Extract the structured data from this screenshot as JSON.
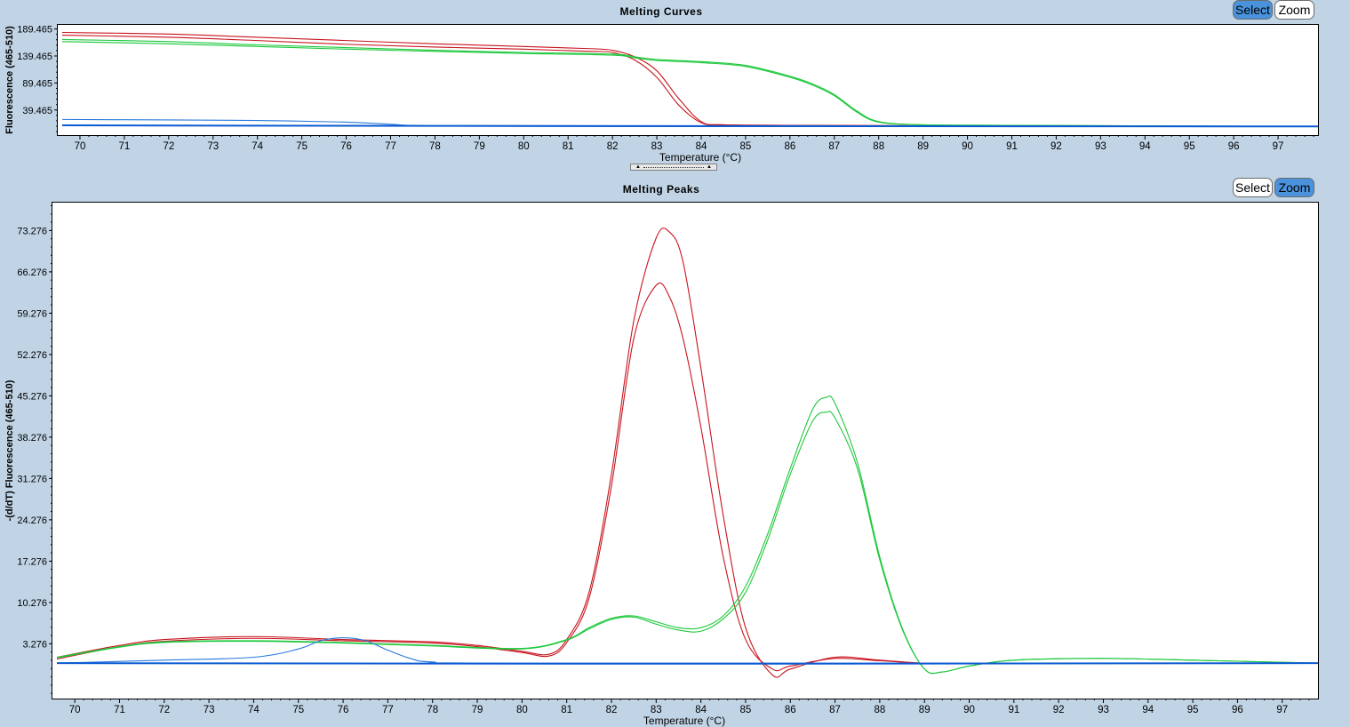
{
  "curves_panel": {
    "title": "Melting Curves",
    "select_label": "Select",
    "zoom_label": "Zoom",
    "active_button": "select"
  },
  "peaks_panel": {
    "title": "Melting Peaks",
    "select_label": "Select",
    "zoom_label": "Zoom",
    "active_button": "zoom"
  },
  "colors": {
    "red": "#c8141e",
    "green": "#1ec83c",
    "blue": "#2878dc",
    "dark_blue": "#0a5ad2"
  },
  "chart_data": [
    {
      "type": "line",
      "title": "Melting Curves",
      "xlabel": "Temperature (°C)",
      "ylabel": "Fluorescence (465-510)",
      "xlim": [
        69.5,
        97.9
      ],
      "ylim": [
        -7,
        197
      ],
      "xticks": [
        "70",
        "71",
        "72",
        "73",
        "74",
        "75",
        "76",
        "77",
        "78",
        "79",
        "80",
        "81",
        "82",
        "83",
        "84",
        "85",
        "86",
        "87",
        "88",
        "89",
        "90",
        "91",
        "92",
        "93",
        "94",
        "95",
        "96",
        "97"
      ],
      "yticks": [
        "189.465",
        "139.465",
        "89.465",
        "39.465"
      ],
      "ytick_values": [
        189.465,
        139.465,
        89.465,
        39.465
      ],
      "series": [
        {
          "color": "red",
          "x": [
            69.6,
            72,
            74,
            76,
            78,
            80,
            81.5,
            82,
            82.5,
            83,
            83.5,
            84,
            84.5,
            86,
            90,
            97.9
          ],
          "y": [
            183,
            180,
            174,
            168,
            162,
            157,
            153,
            150,
            138,
            112,
            60,
            18,
            12,
            11,
            10,
            9
          ]
        },
        {
          "color": "red",
          "x": [
            69.6,
            72,
            74,
            76,
            78,
            80,
            81.5,
            82,
            82.5,
            83,
            83.5,
            84,
            84.5,
            86,
            90,
            97.9
          ],
          "y": [
            178,
            174,
            168,
            161,
            156,
            152,
            148,
            146,
            132,
            100,
            48,
            16,
            12,
            11,
            10,
            9
          ]
        },
        {
          "color": "green",
          "x": [
            69.6,
            72,
            74,
            76,
            78,
            80,
            82,
            82.5,
            83,
            84,
            85,
            86,
            86.5,
            87,
            87.5,
            88,
            89,
            91,
            94,
            97.9
          ],
          "y": [
            170,
            166,
            160,
            155,
            150,
            146,
            143,
            138,
            133,
            129,
            122,
            102,
            88,
            68,
            38,
            18,
            12,
            11,
            10,
            9
          ]
        },
        {
          "color": "green",
          "x": [
            69.6,
            72,
            74,
            76,
            78,
            80,
            82,
            82.5,
            83,
            84,
            85,
            86,
            86.5,
            87,
            87.5,
            88,
            89,
            91,
            94,
            97.9
          ],
          "y": [
            166,
            162,
            157,
            152,
            148,
            144,
            141,
            136,
            131,
            127,
            120,
            100,
            86,
            66,
            36,
            17,
            12,
            11,
            10,
            9
          ]
        },
        {
          "color": "blue",
          "x": [
            69.6,
            72,
            74,
            76,
            77,
            78,
            82,
            97.9
          ],
          "y": [
            22,
            21,
            20,
            17,
            13,
            10,
            9,
            9
          ]
        },
        {
          "color": "dark_blue",
          "x": [
            69.6,
            78,
            97.9
          ],
          "y": [
            11,
            10,
            9
          ]
        }
      ]
    },
    {
      "type": "line",
      "title": "Melting Peaks",
      "xlabel": "Temperature (°C)",
      "ylabel": "-(d/dT) Fluorescence (465-510)",
      "xlim": [
        69.5,
        97.8
      ],
      "ylim": [
        -6,
        78
      ],
      "xticks": [
        "70",
        "71",
        "72",
        "73",
        "74",
        "75",
        "76",
        "77",
        "78",
        "79",
        "80",
        "81",
        "82",
        "83",
        "84",
        "85",
        "86",
        "87",
        "88",
        "89",
        "90",
        "91",
        "92",
        "93",
        "94",
        "95",
        "96",
        "97"
      ],
      "yticks": [
        "73.276",
        "66.276",
        "59.276",
        "52.276",
        "45.276",
        "38.276",
        "31.276",
        "24.276",
        "17.276",
        "10.276",
        "3.276"
      ],
      "ytick_values": [
        73.276,
        66.276,
        59.276,
        52.276,
        45.276,
        38.276,
        31.276,
        24.276,
        17.276,
        10.276,
        3.276
      ],
      "series": [
        {
          "color": "red",
          "x": [
            69.6,
            71,
            72,
            74,
            76,
            78,
            79,
            80,
            80.6,
            81,
            81.5,
            82,
            82.5,
            83,
            83.3,
            83.6,
            84,
            84.5,
            85,
            85.6,
            86,
            87,
            88,
            89,
            90,
            97.8
          ],
          "y": [
            1,
            3,
            4,
            4.5,
            4,
            3.6,
            3,
            2,
            1.5,
            4,
            12,
            32,
            58,
            72,
            73,
            68,
            50,
            25,
            6,
            -2,
            -1,
            1,
            0.5,
            0,
            0,
            0
          ]
        },
        {
          "color": "red",
          "x": [
            69.6,
            71,
            72,
            74,
            76,
            78,
            79,
            80,
            80.6,
            81,
            81.5,
            82,
            82.5,
            83,
            83.3,
            83.6,
            84,
            84.5,
            85,
            85.6,
            86,
            87,
            88,
            89,
            90,
            97.8
          ],
          "y": [
            0.7,
            2.8,
            3.7,
            4.2,
            3.8,
            3.4,
            2.8,
            1.8,
            1.2,
            3.5,
            11,
            30,
            55,
            64,
            62,
            55,
            40,
            18,
            4,
            -1,
            -0.5,
            0.8,
            0.4,
            0,
            0,
            0
          ]
        },
        {
          "color": "green",
          "x": [
            69.6,
            71,
            72,
            74,
            76,
            78,
            80,
            81,
            81.5,
            82,
            82.5,
            83,
            83.5,
            84,
            84.5,
            85,
            85.5,
            86,
            86.5,
            86.8,
            87,
            87.5,
            88,
            88.5,
            89,
            89.4,
            90,
            91,
            93,
            95,
            97.8
          ],
          "y": [
            1,
            2.8,
            3.6,
            3.8,
            3.5,
            3,
            2.5,
            4,
            6,
            7.6,
            8,
            7,
            6,
            6,
            8,
            13,
            22,
            33,
            43,
            45,
            44,
            34,
            18,
            6,
            -1,
            -1.5,
            -0.5,
            0.5,
            0.8,
            0.5,
            0
          ]
        },
        {
          "color": "green",
          "x": [
            69.6,
            71,
            72,
            74,
            76,
            78,
            80,
            81,
            81.5,
            82,
            82.5,
            83,
            83.5,
            84,
            84.5,
            85,
            85.5,
            86,
            86.5,
            86.8,
            87,
            87.5,
            88,
            88.5,
            89,
            89.4,
            90,
            91,
            93,
            95,
            97.8
          ],
          "y": [
            0.9,
            2.7,
            3.5,
            3.7,
            3.4,
            2.9,
            2.4,
            3.9,
            5.8,
            7.4,
            7.8,
            6.6,
            5.6,
            5.4,
            7.5,
            12,
            21,
            32,
            41,
            42.5,
            41.5,
            33,
            17.5,
            5.8,
            -1,
            -1.5,
            -0.5,
            0.5,
            0.8,
            0.5,
            0
          ]
        },
        {
          "color": "blue",
          "x": [
            69.6,
            72,
            74,
            75,
            75.5,
            76,
            76.5,
            77,
            77.5,
            78,
            80,
            97.8
          ],
          "y": [
            0,
            0.5,
            1,
            2.4,
            3.8,
            4.3,
            3.8,
            2.2,
            0.8,
            0.2,
            0,
            0
          ]
        },
        {
          "color": "dark_blue",
          "x": [
            69.6,
            84,
            97.8
          ],
          "y": [
            0,
            -0.1,
            0
          ]
        }
      ]
    }
  ]
}
